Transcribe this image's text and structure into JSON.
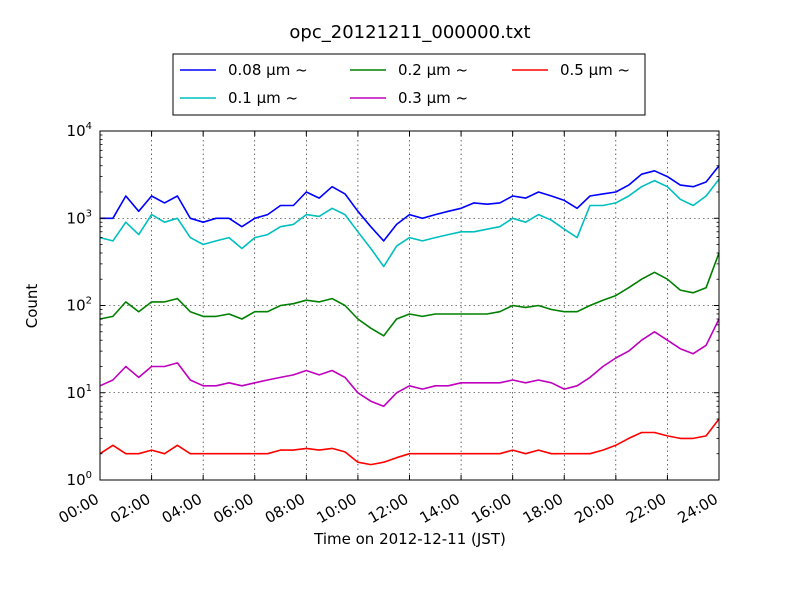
{
  "chart_data": {
    "type": "line",
    "title": "opc_20121211_000000.txt",
    "xlabel": "Time on 2012-12-11 (JST)",
    "ylabel": "Count",
    "yscale": "log",
    "ylim": [
      1,
      10000
    ],
    "xlim": [
      "00:00",
      "24:00"
    ],
    "grid": true,
    "legend_position": "top-center",
    "x_ticks": [
      "00:00",
      "02:00",
      "04:00",
      "06:00",
      "08:00",
      "10:00",
      "12:00",
      "14:00",
      "16:00",
      "18:00",
      "20:00",
      "22:00",
      "24:00"
    ],
    "y_ticks": [
      {
        "base": "10",
        "exp": "0",
        "value": 1
      },
      {
        "base": "10",
        "exp": "1",
        "value": 10
      },
      {
        "base": "10",
        "exp": "2",
        "value": 100
      },
      {
        "base": "10",
        "exp": "3",
        "value": 1000
      },
      {
        "base": "10",
        "exp": "4",
        "value": 10000
      }
    ],
    "x_hours": [
      0,
      0.5,
      1,
      1.5,
      2,
      2.5,
      3,
      3.5,
      4,
      4.5,
      5,
      5.5,
      6,
      6.5,
      7,
      7.5,
      8,
      8.5,
      9,
      9.5,
      10,
      10.5,
      11,
      11.5,
      12,
      12.5,
      13,
      13.5,
      14,
      14.5,
      15,
      15.5,
      16,
      16.5,
      17,
      17.5,
      18,
      18.5,
      19,
      19.5,
      20,
      20.5,
      21,
      21.5,
      22,
      22.5,
      23,
      23.5,
      24
    ],
    "series": [
      {
        "name": "0.08 μm ~",
        "color": "#0000ff",
        "values": [
          1000,
          1000,
          1800,
          1200,
          1800,
          1500,
          1800,
          1000,
          900,
          1000,
          1000,
          800,
          1000,
          1100,
          1400,
          1400,
          2000,
          1700,
          2300,
          1900,
          1200,
          800,
          550,
          850,
          1100,
          1000,
          1100,
          1200,
          1300,
          1500,
          1450,
          1500,
          1800,
          1700,
          2000,
          1800,
          1600,
          1300,
          1800,
          1900,
          2000,
          2400,
          3200,
          3500,
          3000,
          2400,
          2300,
          2600,
          4000
        ]
      },
      {
        "name": "0.1 μm ~",
        "color": "#00bfbf",
        "values": [
          600,
          550,
          900,
          650,
          1100,
          900,
          1000,
          600,
          500,
          550,
          600,
          450,
          600,
          650,
          800,
          850,
          1100,
          1050,
          1300,
          1100,
          700,
          450,
          280,
          480,
          600,
          550,
          600,
          650,
          700,
          700,
          750,
          800,
          1000,
          900,
          1100,
          950,
          750,
          600,
          1400,
          1400,
          1500,
          1800,
          2300,
          2700,
          2300,
          1650,
          1400,
          1800,
          2800
        ]
      },
      {
        "name": "0.2 μm ~",
        "color": "#008000",
        "values": [
          70,
          75,
          110,
          85,
          110,
          110,
          120,
          85,
          75,
          75,
          80,
          70,
          85,
          85,
          100,
          105,
          115,
          110,
          120,
          100,
          70,
          55,
          45,
          70,
          80,
          75,
          80,
          80,
          80,
          80,
          80,
          85,
          100,
          95,
          100,
          90,
          85,
          85,
          100,
          115,
          130,
          160,
          200,
          240,
          200,
          150,
          140,
          160,
          400
        ]
      },
      {
        "name": "0.3 μm ~",
        "color": "#bf00bf",
        "values": [
          12,
          14,
          20,
          15,
          20,
          20,
          22,
          14,
          12,
          12,
          13,
          12,
          13,
          14,
          15,
          16,
          18,
          16,
          18,
          15,
          10,
          8,
          7,
          10,
          12,
          11,
          12,
          12,
          13,
          13,
          13,
          13,
          14,
          13,
          14,
          13,
          11,
          12,
          15,
          20,
          25,
          30,
          40,
          50,
          40,
          32,
          28,
          35,
          70
        ]
      },
      {
        "name": "0.5 μm ~",
        "color": "#ff0000",
        "values": [
          2,
          2.5,
          2,
          2,
          2.2,
          2,
          2.5,
          2,
          2,
          2,
          2,
          2,
          2,
          2,
          2.2,
          2.2,
          2.3,
          2.2,
          2.3,
          2.1,
          1.6,
          1.5,
          1.6,
          1.8,
          2,
          2,
          2,
          2,
          2,
          2,
          2,
          2,
          2.2,
          2,
          2.2,
          2,
          2,
          2,
          2,
          2.2,
          2.5,
          3,
          3.5,
          3.5,
          3.2,
          3,
          3,
          3.2,
          5
        ]
      }
    ]
  }
}
